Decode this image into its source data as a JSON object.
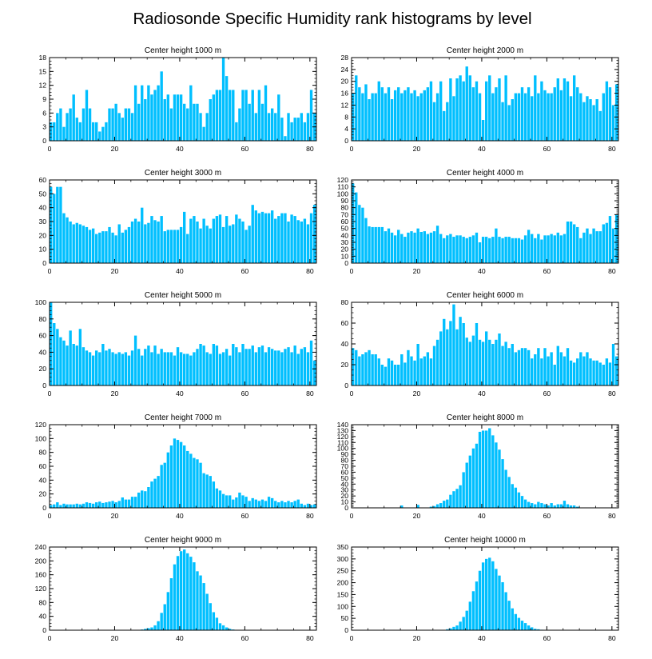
{
  "title": "Radiosonde Specific Humidity rank histograms by level",
  "bar_color": "#00bfff",
  "chart_data": [
    {
      "type": "bar",
      "title": "Center height 1000 m",
      "xlim": [
        0,
        82
      ],
      "xticks": [
        0,
        20,
        40,
        60,
        80
      ],
      "ylim": [
        0,
        18
      ],
      "yticks": [
        0,
        3,
        6,
        9,
        12,
        15,
        18
      ],
      "values": [
        4,
        4,
        6,
        7,
        3,
        6,
        7,
        10,
        5,
        4,
        7,
        11,
        7,
        4,
        4,
        2,
        3,
        4,
        7,
        7,
        8,
        6,
        5,
        7,
        7,
        6,
        12,
        8,
        12,
        9,
        12,
        10,
        11,
        12,
        15,
        9,
        10,
        7,
        10,
        10,
        10,
        8,
        7,
        12,
        8,
        8,
        6,
        3,
        6,
        9,
        10,
        11,
        11,
        18,
        14,
        11,
        11,
        4,
        7,
        11,
        11,
        8,
        11,
        6,
        11,
        8,
        12,
        6,
        7,
        6,
        10,
        5,
        1,
        6,
        4,
        5,
        5,
        6,
        4,
        6,
        11,
        6
      ]
    },
    {
      "type": "bar",
      "title": "Center height 2000 m",
      "xlim": [
        0,
        82
      ],
      "xticks": [
        0,
        20,
        40,
        60,
        80
      ],
      "ylim": [
        0,
        28
      ],
      "yticks": [
        0,
        4,
        8,
        12,
        16,
        20,
        24,
        28
      ],
      "values": [
        16,
        22,
        18,
        16,
        19,
        14,
        16,
        16,
        20,
        18,
        16,
        18,
        14,
        17,
        18,
        16,
        17,
        18,
        16,
        17,
        15,
        16,
        17,
        18,
        20,
        13,
        16,
        20,
        10,
        13,
        21,
        15,
        21,
        22,
        20,
        25,
        22,
        18,
        20,
        16,
        7,
        20,
        22,
        16,
        18,
        21,
        13,
        22,
        12,
        14,
        16,
        16,
        18,
        16,
        18,
        15,
        22,
        16,
        20,
        17,
        16,
        16,
        18,
        21,
        17,
        21,
        20,
        15,
        22,
        18,
        16,
        13,
        15,
        14,
        12,
        14,
        10,
        16,
        20,
        18,
        12,
        19
      ]
    },
    {
      "type": "bar",
      "title": "Center height 3000 m",
      "xlim": [
        0,
        82
      ],
      "xticks": [
        0,
        20,
        40,
        60,
        80
      ],
      "ylim": [
        0,
        60
      ],
      "yticks": [
        0,
        10,
        20,
        30,
        40,
        50,
        60
      ],
      "values": [
        55,
        50,
        55,
        55,
        36,
        33,
        30,
        28,
        29,
        28,
        27,
        26,
        24,
        25,
        21,
        22,
        23,
        23,
        26,
        22,
        20,
        28,
        22,
        24,
        26,
        30,
        32,
        30,
        40,
        28,
        29,
        34,
        31,
        30,
        34,
        23,
        24,
        24,
        24,
        24,
        26,
        37,
        21,
        32,
        34,
        30,
        25,
        32,
        27,
        25,
        32,
        34,
        35,
        26,
        34,
        27,
        28,
        35,
        32,
        30,
        24,
        27,
        42,
        38,
        36,
        37,
        36,
        36,
        38,
        32,
        34,
        36,
        36,
        30,
        35,
        34,
        31,
        30,
        32,
        28,
        36,
        42
      ]
    },
    {
      "type": "bar",
      "title": "Center height 4000 m",
      "xlim": [
        0,
        82
      ],
      "xticks": [
        0,
        20,
        40,
        60,
        80
      ],
      "ylim": [
        0,
        120
      ],
      "yticks": [
        0,
        10,
        20,
        30,
        40,
        50,
        60,
        70,
        80,
        90,
        100,
        110,
        120
      ],
      "values": [
        115,
        102,
        84,
        80,
        65,
        53,
        52,
        52,
        52,
        52,
        46,
        50,
        44,
        40,
        48,
        42,
        38,
        44,
        46,
        44,
        50,
        45,
        46,
        42,
        44,
        46,
        54,
        42,
        36,
        40,
        42,
        38,
        40,
        40,
        38,
        36,
        38,
        40,
        44,
        30,
        38,
        38,
        36,
        38,
        50,
        38,
        36,
        38,
        38,
        36,
        36,
        36,
        34,
        40,
        48,
        42,
        36,
        42,
        34,
        40,
        40,
        42,
        40,
        44,
        40,
        42,
        60,
        60,
        56,
        52,
        36,
        44,
        50,
        42,
        50,
        46,
        46,
        56,
        58,
        68,
        50,
        70
      ]
    },
    {
      "type": "bar",
      "title": "Center height 5000 m",
      "xlim": [
        0,
        82
      ],
      "xticks": [
        0,
        20,
        40,
        60,
        80
      ],
      "ylim": [
        0,
        100
      ],
      "yticks": [
        0,
        20,
        40,
        60,
        80,
        100
      ],
      "values": [
        100,
        75,
        68,
        58,
        54,
        48,
        66,
        50,
        48,
        68,
        46,
        42,
        40,
        36,
        42,
        40,
        50,
        42,
        44,
        40,
        38,
        40,
        38,
        40,
        36,
        42,
        60,
        44,
        36,
        44,
        48,
        40,
        48,
        38,
        44,
        40,
        40,
        40,
        36,
        46,
        40,
        38,
        38,
        36,
        40,
        44,
        50,
        48,
        40,
        38,
        50,
        48,
        38,
        40,
        44,
        36,
        50,
        46,
        40,
        50,
        44,
        44,
        48,
        40,
        46,
        48,
        40,
        46,
        44,
        42,
        42,
        40,
        44,
        46,
        40,
        48,
        38,
        44,
        46,
        40,
        54,
        30
      ]
    },
    {
      "type": "bar",
      "title": "Center height 6000 m",
      "xlim": [
        0,
        82
      ],
      "xticks": [
        0,
        20,
        40,
        60,
        80
      ],
      "ylim": [
        0,
        80
      ],
      "yticks": [
        0,
        20,
        40,
        60,
        80
      ],
      "values": [
        36,
        34,
        28,
        30,
        32,
        34,
        30,
        30,
        26,
        20,
        18,
        26,
        24,
        20,
        20,
        30,
        22,
        34,
        28,
        24,
        40,
        26,
        28,
        32,
        26,
        38,
        44,
        52,
        64,
        54,
        62,
        78,
        54,
        66,
        60,
        46,
        42,
        48,
        60,
        44,
        42,
        52,
        44,
        40,
        44,
        50,
        38,
        42,
        36,
        40,
        32,
        34,
        36,
        36,
        34,
        26,
        30,
        36,
        26,
        36,
        28,
        32,
        20,
        38,
        32,
        28,
        36,
        24,
        22,
        26,
        32,
        28,
        32,
        26,
        24,
        24,
        22,
        20,
        26,
        22,
        40,
        28
      ]
    },
    {
      "type": "bar",
      "title": "Center height 7000 m",
      "xlim": [
        0,
        82
      ],
      "xticks": [
        0,
        20,
        40,
        60,
        80
      ],
      "ylim": [
        0,
        120
      ],
      "yticks": [
        0,
        20,
        40,
        60,
        80,
        100,
        120
      ],
      "values": [
        4,
        5,
        8,
        4,
        6,
        5,
        5,
        5,
        6,
        5,
        6,
        8,
        7,
        6,
        8,
        9,
        7,
        8,
        9,
        10,
        8,
        10,
        15,
        12,
        12,
        16,
        16,
        22,
        25,
        24,
        30,
        38,
        42,
        46,
        62,
        65,
        80,
        90,
        100,
        98,
        95,
        90,
        82,
        78,
        72,
        70,
        65,
        50,
        48,
        46,
        38,
        28,
        25,
        20,
        18,
        18,
        12,
        15,
        22,
        18,
        16,
        10,
        14,
        12,
        10,
        12,
        10,
        16,
        14,
        10,
        8,
        10,
        8,
        10,
        8,
        10,
        12,
        6,
        4,
        6,
        4,
        5
      ]
    },
    {
      "type": "bar",
      "title": "Center height 8000 m",
      "xlim": [
        0,
        82
      ],
      "xticks": [
        0,
        20,
        40,
        60,
        80
      ],
      "ylim": [
        0,
        140
      ],
      "yticks": [
        0,
        10,
        20,
        30,
        40,
        50,
        60,
        70,
        80,
        90,
        100,
        110,
        120,
        130,
        140
      ],
      "values": [
        0,
        0,
        0,
        0,
        0,
        0,
        0,
        0,
        0,
        0,
        0,
        0,
        0,
        0,
        0,
        4,
        0,
        0,
        0,
        0,
        5,
        0,
        0,
        0,
        2,
        3,
        6,
        8,
        12,
        14,
        22,
        28,
        32,
        38,
        60,
        76,
        88,
        100,
        108,
        128,
        130,
        130,
        134,
        122,
        110,
        98,
        82,
        64,
        52,
        40,
        34,
        26,
        20,
        14,
        10,
        8,
        6,
        10,
        8,
        6,
        4,
        8,
        4,
        6,
        6,
        12,
        6,
        4,
        4,
        2,
        0,
        0,
        0,
        0,
        0,
        0,
        0,
        0,
        0,
        0,
        0,
        0
      ]
    },
    {
      "type": "bar",
      "title": "Center height 9000 m",
      "xlim": [
        0,
        82
      ],
      "xticks": [
        0,
        20,
        40,
        60,
        80
      ],
      "ylim": [
        0,
        240
      ],
      "yticks": [
        0,
        40,
        80,
        120,
        160,
        200,
        240
      ],
      "values": [
        0,
        0,
        0,
        0,
        0,
        0,
        0,
        0,
        0,
        0,
        0,
        0,
        0,
        0,
        0,
        0,
        0,
        0,
        0,
        0,
        0,
        0,
        0,
        0,
        0,
        0,
        0,
        0,
        2,
        4,
        6,
        8,
        14,
        26,
        50,
        75,
        110,
        150,
        190,
        214,
        228,
        233,
        222,
        212,
        196,
        170,
        158,
        136,
        105,
        78,
        52,
        36,
        20,
        14,
        8,
        4,
        2,
        0,
        0,
        0,
        0,
        0,
        0,
        0,
        0,
        0,
        0,
        0,
        0,
        0,
        0,
        0,
        0,
        0,
        0,
        0,
        0,
        0,
        0,
        0,
        0,
        0
      ]
    },
    {
      "type": "bar",
      "title": "Center height 10000 m",
      "xlim": [
        0,
        82
      ],
      "xticks": [
        0,
        20,
        40,
        60,
        80
      ],
      "ylim": [
        0,
        350
      ],
      "yticks": [
        0,
        50,
        100,
        150,
        200,
        250,
        300,
        350
      ],
      "values": [
        0,
        0,
        0,
        0,
        0,
        0,
        0,
        0,
        0,
        0,
        0,
        0,
        0,
        0,
        0,
        0,
        0,
        0,
        0,
        0,
        0,
        0,
        0,
        0,
        0,
        0,
        0,
        0,
        0,
        4,
        8,
        14,
        20,
        36,
        56,
        82,
        120,
        164,
        205,
        250,
        285,
        300,
        305,
        290,
        258,
        230,
        202,
        160,
        124,
        92,
        68,
        52,
        40,
        30,
        20,
        12,
        6,
        4,
        2,
        0,
        0,
        0,
        0,
        0,
        0,
        0,
        0,
        0,
        0,
        0,
        0,
        0,
        0,
        0,
        0,
        0,
        0,
        0,
        0,
        0,
        0,
        0
      ]
    }
  ]
}
